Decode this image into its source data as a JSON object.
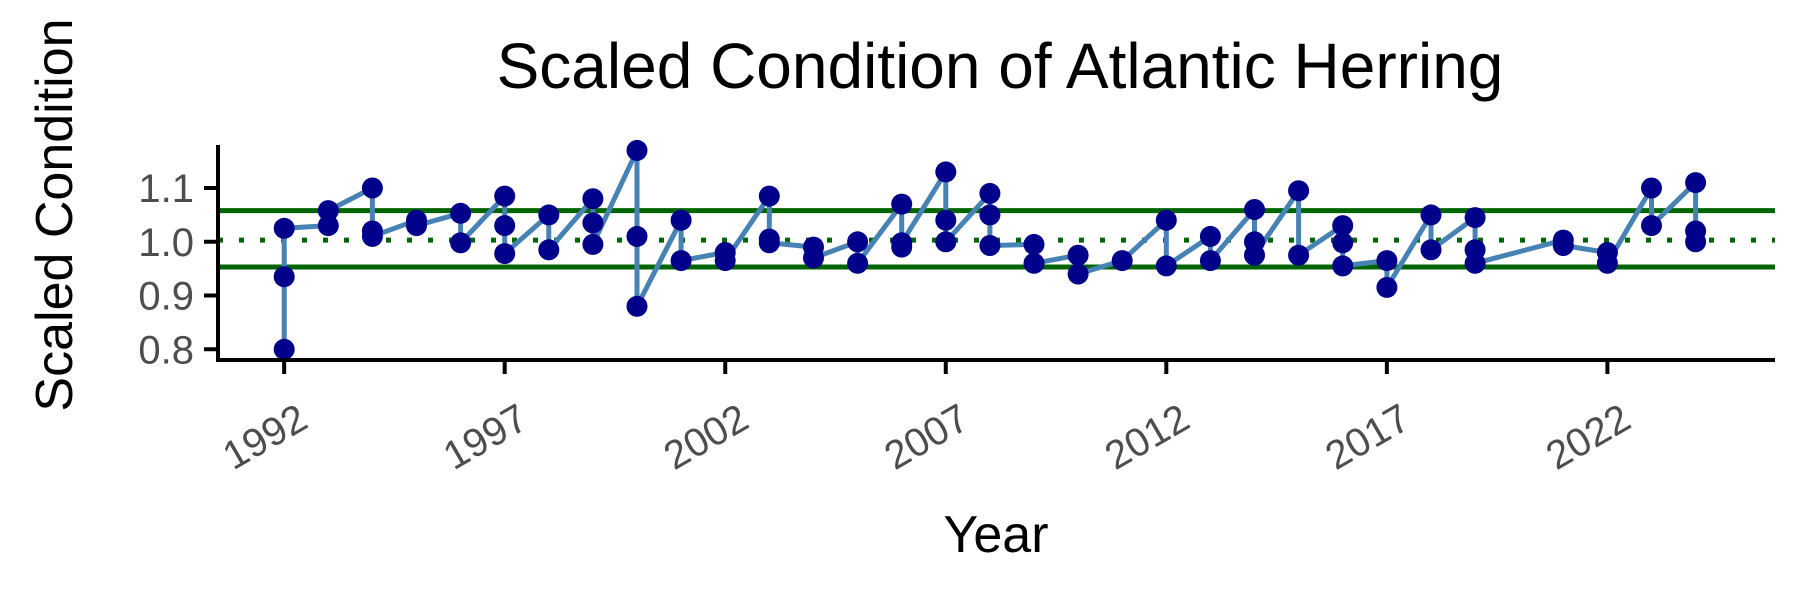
{
  "chart_data": {
    "type": "line",
    "title": "Scaled Condition of Atlantic Herring",
    "xlabel": "Year",
    "ylabel": "Scaled Condition",
    "xlim": [
      1990.5,
      2025.8
    ],
    "ylim": [
      0.78,
      1.18
    ],
    "x_ticks": [
      1992,
      1997,
      2002,
      2007,
      2012,
      2017,
      2022
    ],
    "x_tick_labels": [
      "1992",
      "1997",
      "2002",
      "2007",
      "2012",
      "2017",
      "2022"
    ],
    "y_ticks": [
      0.8,
      0.9,
      1.0,
      1.1
    ],
    "y_tick_labels": [
      "0.8",
      "0.9",
      "1.0",
      "1.1"
    ],
    "grid": false,
    "legend": "none",
    "reference_lines": [
      {
        "kind": "upper",
        "y": 1.058,
        "style": "solid"
      },
      {
        "kind": "mean",
        "y": 1.003,
        "style": "dotted"
      },
      {
        "kind": "lower",
        "y": 0.953,
        "style": "solid"
      }
    ],
    "colors": {
      "line": "#4682b4",
      "points": "#00008b",
      "reference": "#006400",
      "axis": "#000000",
      "tick_text": "#4d4d4d"
    },
    "series": [
      {
        "x": [
          1992,
          1992,
          1992,
          1993,
          1993,
          1994,
          1994,
          1994,
          1995,
          1995,
          1996,
          1996,
          1997,
          1997,
          1997,
          1998,
          1998,
          1999,
          1999,
          1999,
          2000,
          2000,
          2000,
          2001,
          2001,
          2002,
          2002,
          2003,
          2003,
          2003,
          2004,
          2004,
          2005,
          2005,
          2006,
          2006,
          2006,
          2007,
          2007,
          2007,
          2008,
          2008,
          2008,
          2009,
          2009,
          2010,
          2010,
          2011,
          2012,
          2012,
          2013,
          2013,
          2014,
          2014,
          2014,
          2015,
          2015,
          2016,
          2016,
          2016,
          2017,
          2017,
          2018,
          2018,
          2019,
          2019,
          2019,
          2021,
          2021,
          2022,
          2022,
          2023,
          2023,
          2024,
          2024,
          2024
        ],
        "y": [
          0.8,
          0.935,
          1.025,
          1.03,
          1.058,
          1.1,
          1.02,
          1.01,
          1.04,
          1.03,
          1.053,
          0.998,
          1.085,
          1.03,
          0.978,
          1.05,
          0.985,
          1.08,
          1.035,
          0.995,
          1.17,
          1.01,
          0.88,
          1.04,
          0.965,
          0.98,
          0.965,
          1.085,
          1.005,
          0.998,
          0.99,
          0.97,
          1.0,
          0.96,
          1.07,
          0.99,
          0.998,
          1.13,
          1.04,
          1.0,
          1.09,
          1.05,
          0.993,
          0.995,
          0.96,
          0.975,
          0.94,
          0.965,
          1.04,
          0.955,
          1.01,
          0.965,
          1.06,
          1.0,
          0.975,
          1.095,
          0.975,
          1.03,
          0.998,
          0.955,
          0.965,
          0.915,
          1.05,
          0.985,
          1.045,
          0.985,
          0.96,
          1.003,
          0.993,
          0.98,
          0.96,
          1.1,
          1.03,
          1.11,
          1.02,
          1.0
        ]
      }
    ]
  }
}
